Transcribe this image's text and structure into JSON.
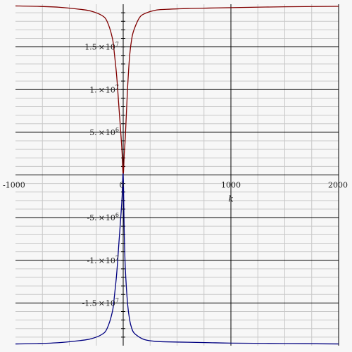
{
  "chart_data": {
    "type": "line",
    "title": "",
    "xlabel": "k",
    "ylabel": "",
    "xlim": [
      -1000,
      2000
    ],
    "ylim": [
      -20000000.0,
      20000000.0
    ],
    "grid": true,
    "x_ticks": [
      {
        "value": -1000,
        "label": "-1000"
      },
      {
        "value": 0,
        "label": "0"
      },
      {
        "value": 1000,
        "label": "1000"
      },
      {
        "value": 2000,
        "label": "2000"
      }
    ],
    "y_ticks": [
      {
        "value": 15000000,
        "mant": "1.5",
        "times": "×",
        "base": "10",
        "exp": "7"
      },
      {
        "value": 10000000,
        "mant": "1.",
        "times": "×",
        "base": "10",
        "exp": "7"
      },
      {
        "value": 5000000,
        "mant": "5.",
        "times": "×",
        "base": "10",
        "exp": "6"
      },
      {
        "value": -5000000,
        "mant": "-5.",
        "times": "×",
        "base": "10",
        "exp": "6"
      },
      {
        "value": -10000000,
        "mant": "-1.",
        "times": "×",
        "base": "10",
        "exp": "7"
      },
      {
        "value": -15000000,
        "mant": "-1.5",
        "times": "×",
        "base": "10",
        "exp": "7"
      }
    ],
    "colors": {
      "background": "#f7f7f7",
      "major_grid": "#000000",
      "minor_grid": "#c8c8c8",
      "axis": "#000000"
    },
    "series": [
      {
        "color": "#800000",
        "x": [
          -1000,
          -800,
          -600,
          -400,
          -300,
          -200,
          -150,
          -100,
          -80,
          -60,
          -40,
          -20,
          -10,
          0,
          10,
          20,
          40,
          60,
          80,
          100,
          150,
          200,
          300,
          400,
          600,
          800,
          1000,
          1500,
          2000
        ],
        "values": [
          19800000,
          19750000,
          19650000,
          19400000,
          19200000,
          18700000,
          18000000,
          16000000,
          14000000,
          11500000,
          8000000,
          4500000,
          2500000,
          0,
          2500000,
          4500000,
          10000000,
          14000000,
          16000000,
          17000000,
          18400000,
          18900000,
          19300000,
          19400000,
          19500000,
          19550000,
          19600000,
          19700000,
          19750000
        ]
      },
      {
        "color": "#000080",
        "x": [
          -1000,
          -800,
          -600,
          -400,
          -300,
          -200,
          -150,
          -100,
          -80,
          -60,
          -40,
          -20,
          -10,
          0,
          10,
          20,
          40,
          60,
          80,
          100,
          150,
          200,
          300,
          400,
          600,
          800,
          1000,
          1500,
          2000
        ],
        "values": [
          -19800000,
          -19750000,
          -19650000,
          -19400000,
          -19200000,
          -18700000,
          -18000000,
          -16000000,
          -14000000,
          -11500000,
          -8000000,
          -4500000,
          -2500000,
          0,
          -7000000,
          -11000000,
          -15000000,
          -17000000,
          -18000000,
          -18500000,
          -19000000,
          -19300000,
          -19500000,
          -19550000,
          -19600000,
          -19650000,
          -19700000,
          -19750000,
          -19800000
        ]
      }
    ]
  }
}
